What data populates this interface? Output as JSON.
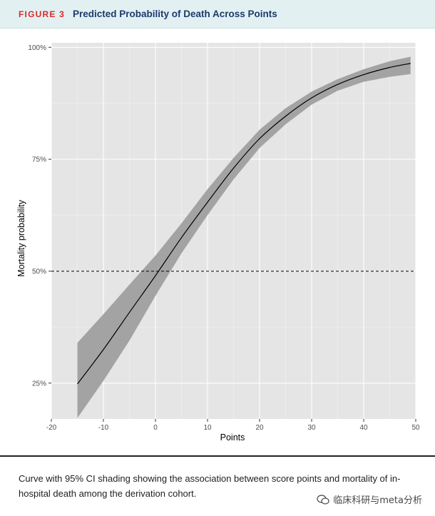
{
  "header": {
    "figure_label": "FIGURE 3",
    "figure_title": "Predicted Probability of Death Across Points"
  },
  "chart_data": {
    "type": "line",
    "xlabel": "Points",
    "ylabel": "Mortality probability",
    "xlim": [
      -20,
      50
    ],
    "ylim": [
      17,
      101
    ],
    "x_ticks": [
      -20,
      -10,
      0,
      10,
      20,
      30,
      40,
      50
    ],
    "y_ticks": [
      25,
      50,
      75,
      100
    ],
    "y_tick_labels": [
      "25%",
      "50%",
      "75%",
      "100%"
    ],
    "reference_line": {
      "y": 50,
      "style": "dashed"
    },
    "background": "#e5e5e5",
    "grid": true,
    "band_color": "#a3a3a3",
    "line_color": "#000000",
    "series": [
      {
        "x": [
          -15,
          -10,
          -5,
          0,
          5,
          10,
          15,
          20,
          25,
          30,
          35,
          40,
          45,
          49
        ],
        "y": [
          24.8,
          32.5,
          40.8,
          49.0,
          57.5,
          65.4,
          73.0,
          79.6,
          84.6,
          88.7,
          91.7,
          93.9,
          95.5,
          96.4
        ],
        "lower": [
          17.2,
          25.5,
          34.5,
          44.5,
          54.0,
          62.5,
          70.5,
          77.5,
          82.8,
          87.2,
          90.3,
          92.3,
          93.4,
          94.0
        ],
        "upper": [
          34.0,
          40.4,
          47.0,
          53.5,
          60.7,
          68.3,
          75.3,
          81.6,
          86.4,
          90.1,
          92.9,
          95.1,
          96.9,
          97.9
        ]
      }
    ]
  },
  "caption": {
    "text": "Curve with 95% CI shading showing the association between score points and mortality of in-hospital death among the derivation cohort."
  },
  "watermark": {
    "text": "临床科研与meta分析"
  }
}
